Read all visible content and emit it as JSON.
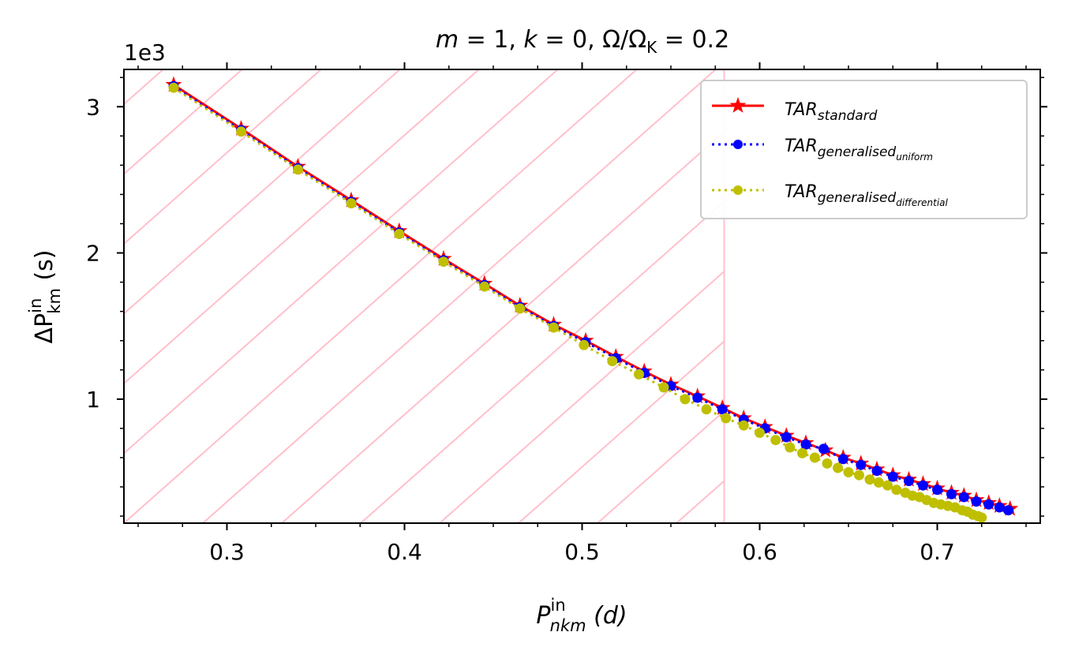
{
  "chart_data": {
    "type": "line",
    "title": "m = 1, k = 0, Ω/Ω_K = 0.2",
    "title_parts": {
      "m": "m",
      "m_val": " = 1, ",
      "k": "k",
      "k_val": " = 0, ",
      "omega": "Ω/Ω",
      "omega_sub": "K",
      "omega_val": " = 0.2"
    },
    "xlabel": "P_nkm^in (d)",
    "xlabel_parts": {
      "main": "P",
      "sub": "nkm",
      "sup": "in",
      "unit": " (d)"
    },
    "ylabel": "ΔP_km^in (s)",
    "ylabel_parts": {
      "main": "ΔP",
      "sub": "km",
      "sup": "in",
      "unit": " (s)"
    },
    "y_offset_label": "1e3",
    "xlim": [
      0.242,
      0.758
    ],
    "ylim": [
      0.152,
      3.255
    ],
    "x_ticks": [
      0.3,
      0.4,
      0.5,
      0.6,
      0.7
    ],
    "x_tick_labels": [
      "0.3",
      "0.4",
      "0.5",
      "0.6",
      "0.7"
    ],
    "y_ticks": [
      1,
      2,
      3
    ],
    "y_tick_labels": [
      "1",
      "2",
      "3"
    ],
    "hatch_region": {
      "x_max": 0.58,
      "color": "#ffc0cb"
    },
    "legend_position": "top-right",
    "series": [
      {
        "name": "TAR_standard",
        "legend_main": "TAR",
        "legend_sub": "standard",
        "color": "#ff0000",
        "marker": "star",
        "linestyle": "solid",
        "x": [
          0.27,
          0.308,
          0.34,
          0.37,
          0.397,
          0.422,
          0.445,
          0.465,
          0.484,
          0.502,
          0.519,
          0.535,
          0.55,
          0.565,
          0.579,
          0.591,
          0.603,
          0.615,
          0.626,
          0.637,
          0.647,
          0.657,
          0.666,
          0.675,
          0.684,
          0.692,
          0.7,
          0.708,
          0.715,
          0.722,
          0.729,
          0.735,
          0.741
        ],
        "y": [
          3.15,
          2.85,
          2.59,
          2.36,
          2.15,
          1.96,
          1.79,
          1.64,
          1.51,
          1.4,
          1.29,
          1.19,
          1.1,
          1.02,
          0.94,
          0.87,
          0.81,
          0.75,
          0.7,
          0.65,
          0.6,
          0.56,
          0.52,
          0.48,
          0.45,
          0.42,
          0.39,
          0.36,
          0.34,
          0.31,
          0.29,
          0.27,
          0.25
        ]
      },
      {
        "name": "TAR_generalised_uniform",
        "legend_main": "TAR",
        "legend_sub": "generalised",
        "legend_subsub": "uniform",
        "color": "#0000ff",
        "marker": "dot",
        "linestyle": "dotted",
        "x": [
          0.27,
          0.308,
          0.34,
          0.37,
          0.397,
          0.422,
          0.445,
          0.465,
          0.484,
          0.502,
          0.519,
          0.535,
          0.55,
          0.565,
          0.579,
          0.591,
          0.603,
          0.615,
          0.626,
          0.636,
          0.647,
          0.657,
          0.666,
          0.675,
          0.684,
          0.692,
          0.7,
          0.708,
          0.715,
          0.722,
          0.729,
          0.735,
          0.74
        ],
        "y": [
          3.14,
          2.84,
          2.58,
          2.35,
          2.14,
          1.95,
          1.78,
          1.63,
          1.5,
          1.39,
          1.28,
          1.18,
          1.09,
          1.01,
          0.93,
          0.86,
          0.8,
          0.74,
          0.69,
          0.66,
          0.59,
          0.55,
          0.51,
          0.47,
          0.44,
          0.41,
          0.38,
          0.35,
          0.33,
          0.3,
          0.28,
          0.26,
          0.24
        ]
      },
      {
        "name": "TAR_generalised_differential",
        "legend_main": "TAR",
        "legend_sub": "generalised",
        "legend_subsub": "differential",
        "color": "#bfbf00",
        "marker": "dot",
        "linestyle": "dotted",
        "x": [
          0.27,
          0.308,
          0.34,
          0.37,
          0.397,
          0.422,
          0.445,
          0.465,
          0.484,
          0.501,
          0.517,
          0.532,
          0.546,
          0.558,
          0.57,
          0.581,
          0.591,
          0.6,
          0.609,
          0.617,
          0.624,
          0.631,
          0.638,
          0.644,
          0.65,
          0.656,
          0.662,
          0.667,
          0.672,
          0.677,
          0.682,
          0.686,
          0.69,
          0.694,
          0.698,
          0.702,
          0.706,
          0.71,
          0.714,
          0.717,
          0.72,
          0.723,
          0.725
        ],
        "y": [
          3.13,
          2.83,
          2.57,
          2.34,
          2.13,
          1.94,
          1.77,
          1.62,
          1.49,
          1.37,
          1.26,
          1.17,
          1.08,
          1.0,
          0.93,
          0.87,
          0.82,
          0.77,
          0.72,
          0.67,
          0.63,
          0.6,
          0.56,
          0.53,
          0.5,
          0.48,
          0.45,
          0.43,
          0.41,
          0.38,
          0.36,
          0.34,
          0.33,
          0.31,
          0.29,
          0.28,
          0.27,
          0.26,
          0.24,
          0.23,
          0.21,
          0.2,
          0.19
        ]
      }
    ]
  }
}
